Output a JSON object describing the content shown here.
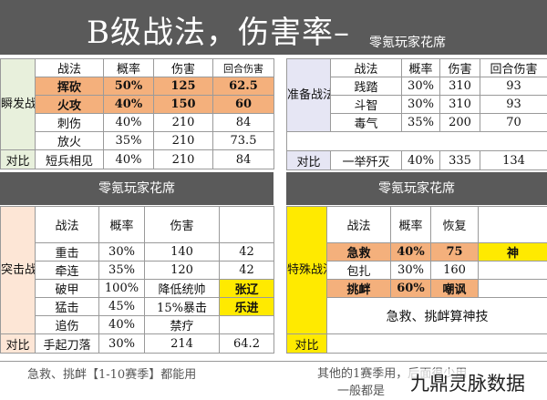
{
  "title": {
    "main": "B级战法，伤害率–",
    "sub": "零氪玩家花席"
  },
  "banners": {
    "left": "零氪玩家花席",
    "right": "零氪玩家花席"
  },
  "burst": {
    "section": "瞬发战法",
    "headers": [
      "战法",
      "概率",
      "伤害",
      "回合伤害"
    ],
    "rows": [
      [
        "挥砍",
        "50%",
        "125",
        "62.5"
      ],
      [
        "火攻",
        "40%",
        "150",
        "60"
      ],
      [
        "刺伤",
        "40%",
        "210",
        "84"
      ],
      [
        "放火",
        "35%",
        "210",
        "73.5"
      ]
    ],
    "compare_label": "对比",
    "compare": [
      "短兵相见",
      "40%",
      "210",
      "84"
    ]
  },
  "prepare": {
    "section": "准备战法",
    "headers": [
      "战法",
      "概率",
      "伤害",
      "回合伤害"
    ],
    "rows": [
      [
        "践踏",
        "30%",
        "310",
        "93"
      ],
      [
        "斗智",
        "30%",
        "310",
        "93"
      ],
      [
        "毒气",
        "35%",
        "200",
        "70"
      ]
    ],
    "compare_label": "对比",
    "compare": [
      "一举歼灭",
      "40%",
      "335",
      "134"
    ]
  },
  "assault": {
    "section": "突击战法",
    "headers": [
      "战法",
      "概率",
      "伤害",
      ""
    ],
    "rows": [
      [
        "重击",
        "30%",
        "140",
        "42"
      ],
      [
        "牵连",
        "35%",
        "120",
        "42"
      ],
      [
        "破甲",
        "100%",
        "降低统帅",
        "张辽"
      ],
      [
        "猛击",
        "45%",
        "15%暴击",
        "乐进"
      ],
      [
        "追伤",
        "40%",
        "禁疗",
        ""
      ]
    ],
    "compare_label": "对比",
    "compare": [
      "手起刀落",
      "30%",
      "214",
      "64.2"
    ]
  },
  "special": {
    "section": "特殊战法",
    "headers": [
      "战法",
      "概率",
      "恢复",
      ""
    ],
    "rows": [
      [
        "急救",
        "40%",
        "75",
        "神"
      ],
      [
        "包扎",
        "30%",
        "160",
        ""
      ],
      [
        "挑衅",
        "60%",
        "嘲讽",
        ""
      ]
    ],
    "note": "急救、挑衅算神技",
    "compare_label": "对比"
  },
  "footer": {
    "left": "急救、挑衅【1-10赛季】都能用",
    "right_line1": "其他的1赛季用，后面很少用",
    "right_line2": "一般都是"
  },
  "watermark": "九鼎灵脉数据",
  "colors": {
    "header_gray": "#5a5a5a",
    "highlight_orange": "#f4b07c",
    "highlight_yellow": "#ffea00",
    "burst_bg": "#e8f0dc",
    "prepare_bg": "#e6e6f4",
    "assault_bg": "#fde6d6"
  }
}
